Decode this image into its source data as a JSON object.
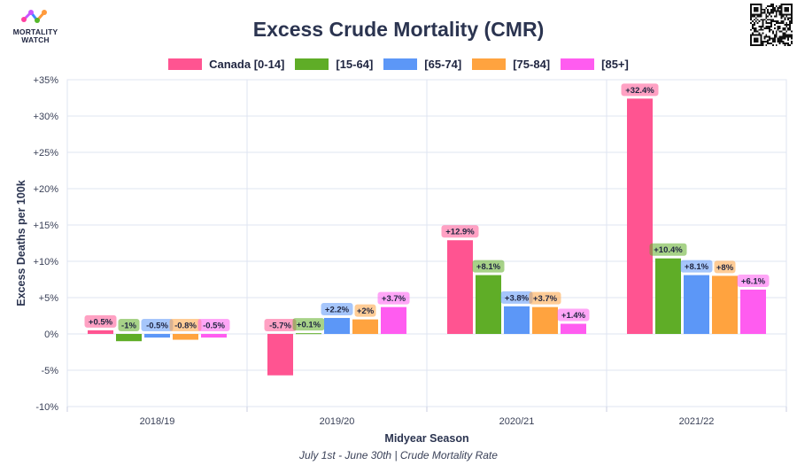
{
  "brand": {
    "name_line1": "MORTALITY",
    "name_line2": "WATCH",
    "logo_colors": [
      "#ff3fa0",
      "#ff9a3c",
      "#3d8bff",
      "#55b82b",
      "#c855ff"
    ]
  },
  "header": {
    "title": "Excess Crude Mortality (CMR)",
    "qr": "qr-code-icon"
  },
  "footer": {
    "subtitle": "July 1st - June 30th | Crude Mortality Rate"
  },
  "chart_data": {
    "type": "bar",
    "title": "Excess Crude Mortality (CMR)",
    "xlabel": "Midyear Season",
    "ylabel": "Excess Deaths per 100k",
    "ylim": [
      -10,
      35
    ],
    "yticks": [
      -10,
      -5,
      0,
      5,
      10,
      15,
      20,
      25,
      30,
      35
    ],
    "ytick_labels": [
      "-10%",
      "-5%",
      "0%",
      "+5%",
      "+10%",
      "+15%",
      "+20%",
      "+25%",
      "+30%",
      "+35%"
    ],
    "grid": true,
    "legend_position": "top-center",
    "categories": [
      "2018/19",
      "2019/20",
      "2020/21",
      "2021/22"
    ],
    "series": [
      {
        "name": "Canada [0-14]",
        "color": "#ff5491",
        "values": [
          0.5,
          -5.7,
          12.9,
          32.4
        ],
        "labels": [
          "+0.5%",
          "-5.7%",
          "+12.9%",
          "+32.4%"
        ]
      },
      {
        "name": "[15-64]",
        "color": "#5fad27",
        "values": [
          -1,
          0.1,
          8.1,
          10.4
        ],
        "labels": [
          "-1%",
          "+0.1%",
          "+8.1%",
          "+10.4%"
        ]
      },
      {
        "name": "[65-74]",
        "color": "#5c97f7",
        "values": [
          -0.5,
          2.2,
          3.8,
          8.1
        ],
        "labels": [
          "-0.5%",
          "+2.2%",
          "+3.8%",
          "+8.1%"
        ]
      },
      {
        "name": "[75-84]",
        "color": "#ffa33f",
        "values": [
          -0.8,
          2,
          3.7,
          8
        ],
        "labels": [
          "-0.8%",
          "+2%",
          "+3.7%",
          "+8%"
        ]
      },
      {
        "name": "[85+]",
        "color": "#ff5cf0",
        "values": [
          -0.5,
          3.7,
          1.4,
          6.1
        ],
        "labels": [
          "-0.5%",
          "+3.7%",
          "+1.4%",
          "+6.1%"
        ]
      }
    ]
  }
}
